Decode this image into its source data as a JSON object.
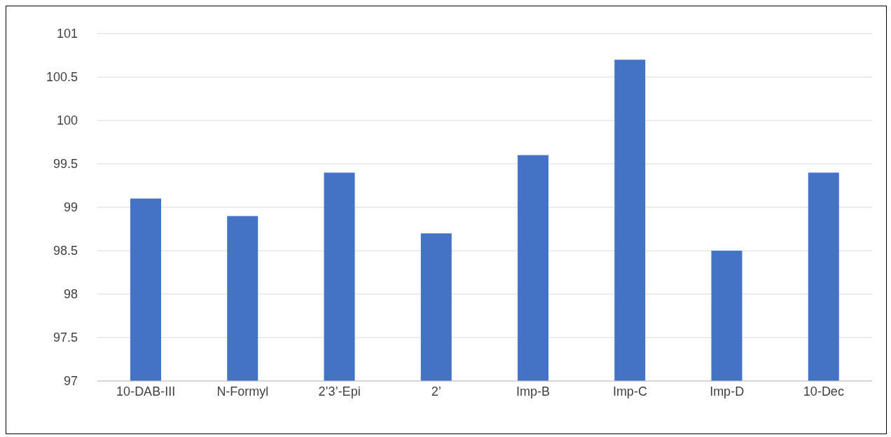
{
  "chart_data": {
    "type": "bar",
    "categories": [
      "10-DAB-III",
      "N-Formyl",
      "2’3’-Epi",
      "2’",
      "Imp-B",
      "Imp-C",
      "Imp-D",
      "10-Dec"
    ],
    "values": [
      99.1,
      98.9,
      99.4,
      98.7,
      99.6,
      100.7,
      98.5,
      99.4
    ],
    "color": "#4472c4",
    "ylim": [
      97,
      101
    ],
    "yticks": [
      97,
      97.5,
      98,
      98.5,
      99,
      99.5,
      100,
      100.5,
      101
    ],
    "grid": "y",
    "legend": false
  }
}
